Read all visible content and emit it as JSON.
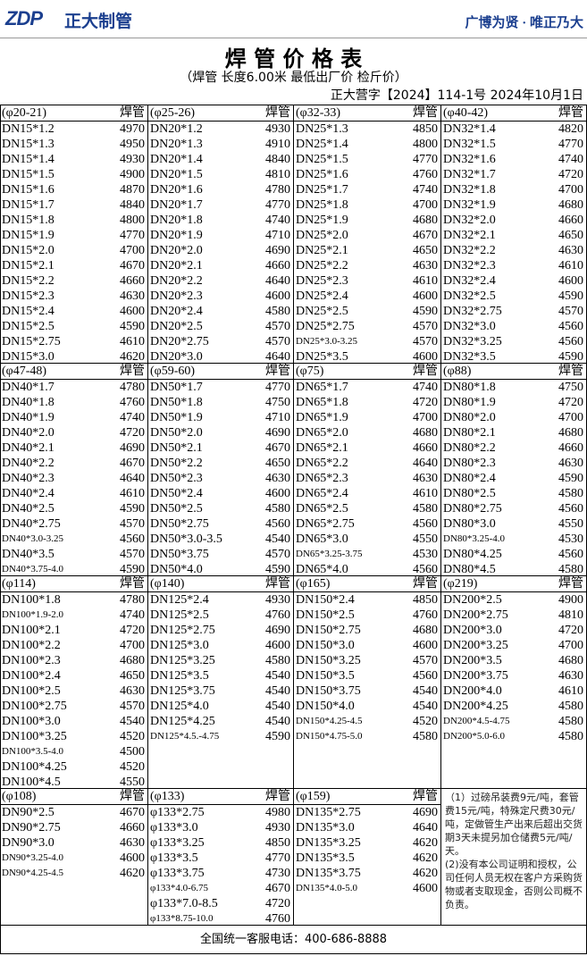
{
  "header": {
    "logo": "ZDP",
    "company": "正大制管",
    "slogan": "广博为贤 · 唯正乃大"
  },
  "title": "焊 管 价 格 表",
  "subtitle": "（焊管  长度6.00米  最低出厂价  检斤价）",
  "doc_number": "正大营字【2024】114-1号    2024年10月1日",
  "sections": [
    {
      "columns": [
        {
          "range": "(φ20-21)",
          "label": "焊管",
          "items": [
            [
              "DN15*1.2",
              4970
            ],
            [
              "DN15*1.3",
              4950
            ],
            [
              "DN15*1.4",
              4930
            ],
            [
              "DN15*1.5",
              4900
            ],
            [
              "DN15*1.6",
              4870
            ],
            [
              "DN15*1.7",
              4840
            ],
            [
              "DN15*1.8",
              4800
            ],
            [
              "DN15*1.9",
              4770
            ],
            [
              "DN15*2.0",
              4700
            ],
            [
              "DN15*2.1",
              4670
            ],
            [
              "DN15*2.2",
              4660
            ],
            [
              "DN15*2.3",
              4630
            ],
            [
              "DN15*2.4",
              4600
            ],
            [
              "DN15*2.5",
              4590
            ],
            [
              "DN15*2.75",
              4610
            ],
            [
              "DN15*3.0",
              4620
            ]
          ]
        },
        {
          "range": "(φ25-26)",
          "label": "焊管",
          "items": [
            [
              "DN20*1.2",
              4930
            ],
            [
              "DN20*1.3",
              4910
            ],
            [
              "DN20*1.4",
              4840
            ],
            [
              "DN20*1.5",
              4810
            ],
            [
              "DN20*1.6",
              4780
            ],
            [
              "DN20*1.7",
              4770
            ],
            [
              "DN20*1.8",
              4740
            ],
            [
              "DN20*1.9",
              4710
            ],
            [
              "DN20*2.0",
              4690
            ],
            [
              "DN20*2.1",
              4660
            ],
            [
              "DN20*2.2",
              4640
            ],
            [
              "DN20*2.3",
              4600
            ],
            [
              "DN20*2.4",
              4580
            ],
            [
              "DN20*2.5",
              4570
            ],
            [
              "DN20*2.75",
              4570
            ],
            [
              "DN20*3.0",
              4640
            ]
          ]
        },
        {
          "range": "(φ32-33)",
          "label": "焊管",
          "items": [
            [
              "DN25*1.3",
              4850
            ],
            [
              "DN25*1.4",
              4800
            ],
            [
              "DN25*1.5",
              4770
            ],
            [
              "DN25*1.6",
              4760
            ],
            [
              "DN25*1.7",
              4740
            ],
            [
              "DN25*1.8",
              4700
            ],
            [
              "DN25*1.9",
              4680
            ],
            [
              "DN25*2.0",
              4670
            ],
            [
              "DN25*2.1",
              4650
            ],
            [
              "DN25*2.2",
              4630
            ],
            [
              "DN25*2.3",
              4610
            ],
            [
              "DN25*2.4",
              4600
            ],
            [
              "DN25*2.5",
              4590
            ],
            [
              "DN25*2.75",
              4570
            ],
            [
              "DN25*3.0-3.25",
              4570
            ],
            [
              "DN25*3.5",
              4600
            ]
          ]
        },
        {
          "range": "(φ40-42)",
          "label": "焊管",
          "items": [
            [
              "DN32*1.4",
              4820
            ],
            [
              "DN32*1.5",
              4770
            ],
            [
              "DN32*1.6",
              4740
            ],
            [
              "DN32*1.7",
              4720
            ],
            [
              "DN32*1.8",
              4700
            ],
            [
              "DN32*1.9",
              4680
            ],
            [
              "DN32*2.0",
              4660
            ],
            [
              "DN32*2.1",
              4650
            ],
            [
              "DN32*2.2",
              4630
            ],
            [
              "DN32*2.3",
              4610
            ],
            [
              "DN32*2.4",
              4600
            ],
            [
              "DN32*2.5",
              4590
            ],
            [
              "DN32*2.75",
              4570
            ],
            [
              "DN32*3.0",
              4560
            ],
            [
              "DN32*3.25",
              4560
            ],
            [
              "DN32*3.5",
              4590
            ]
          ]
        }
      ]
    },
    {
      "columns": [
        {
          "range": "(φ47-48)",
          "label": "焊管",
          "items": [
            [
              "DN40*1.7",
              4780
            ],
            [
              "DN40*1.8",
              4760
            ],
            [
              "DN40*1.9",
              4740
            ],
            [
              "DN40*2.0",
              4720
            ],
            [
              "DN40*2.1",
              4690
            ],
            [
              "DN40*2.2",
              4670
            ],
            [
              "DN40*2.3",
              4640
            ],
            [
              "DN40*2.4",
              4610
            ],
            [
              "DN40*2.5",
              4590
            ],
            [
              "DN40*2.75",
              4570
            ],
            [
              "DN40*3.0-3.25",
              4560
            ],
            [
              "DN40*3.5",
              4570
            ],
            [
              "DN40*3.75-4.0",
              4590
            ]
          ]
        },
        {
          "range": "(φ59-60)",
          "label": "焊管",
          "items": [
            [
              "DN50*1.7",
              4770
            ],
            [
              "DN50*1.8",
              4750
            ],
            [
              "DN50*1.9",
              4710
            ],
            [
              "DN50*2.0",
              4690
            ],
            [
              "DN50*2.1",
              4670
            ],
            [
              "DN50*2.2",
              4650
            ],
            [
              "DN50*2.3",
              4630
            ],
            [
              "DN50*2.4",
              4600
            ],
            [
              "DN50*2.5",
              4580
            ],
            [
              "DN50*2.75",
              4560
            ],
            [
              "DN50*3.0-3.5",
              4540
            ],
            [
              "DN50*3.75",
              4570
            ],
            [
              "DN50*4.0",
              4590
            ]
          ]
        },
        {
          "range": "(φ75)",
          "label": "焊管",
          "items": [
            [
              "DN65*1.7",
              4740
            ],
            [
              "DN65*1.8",
              4720
            ],
            [
              "DN65*1.9",
              4700
            ],
            [
              "DN65*2.0",
              4680
            ],
            [
              "DN65*2.1",
              4660
            ],
            [
              "DN65*2.2",
              4640
            ],
            [
              "DN65*2.3",
              4630
            ],
            [
              "DN65*2.4",
              4610
            ],
            [
              "DN65*2.5",
              4580
            ],
            [
              "DN65*2.75",
              4560
            ],
            [
              "DN65*3.0",
              4550
            ],
            [
              "DN65*3.25-3.75",
              4530
            ],
            [
              "DN65*4.0",
              4560
            ]
          ]
        },
        {
          "range": "(φ88)",
          "label": "焊管",
          "items": [
            [
              "DN80*1.8",
              4750
            ],
            [
              "DN80*1.9",
              4720
            ],
            [
              "DN80*2.0",
              4700
            ],
            [
              "DN80*2.1",
              4680
            ],
            [
              "DN80*2.2",
              4660
            ],
            [
              "DN80*2.3",
              4630
            ],
            [
              "DN80*2.4",
              4590
            ],
            [
              "DN80*2.5",
              4580
            ],
            [
              "DN80*2.75",
              4560
            ],
            [
              "DN80*3.0",
              4550
            ],
            [
              "DN80*3.25-4.0",
              4530
            ],
            [
              "DN80*4.25",
              4560
            ],
            [
              "DN80*4.5",
              4580
            ]
          ]
        }
      ]
    },
    {
      "columns": [
        {
          "range": "(φ114)",
          "label": "焊管",
          "items": [
            [
              "DN100*1.8",
              4780
            ],
            [
              "DN100*1.9-2.0",
              4740
            ],
            [
              "DN100*2.1",
              4720
            ],
            [
              "DN100*2.2",
              4700
            ],
            [
              "DN100*2.3",
              4680
            ],
            [
              "DN100*2.4",
              4650
            ],
            [
              "DN100*2.5",
              4630
            ],
            [
              "DN100*2.75",
              4570
            ],
            [
              "DN100*3.0",
              4540
            ],
            [
              "DN100*3.25",
              4520
            ],
            [
              "DN100*3.5-4.0",
              4500
            ],
            [
              "DN100*4.25",
              4520
            ],
            [
              "DN100*4.5",
              4550
            ]
          ]
        },
        {
          "range": "(φ140)",
          "label": "焊管",
          "items": [
            [
              "DN125*2.4",
              4930
            ],
            [
              "DN125*2.5",
              4760
            ],
            [
              "DN125*2.75",
              4690
            ],
            [
              "DN125*3.0",
              4600
            ],
            [
              "DN125*3.25",
              4580
            ],
            [
              "DN125*3.5",
              4540
            ],
            [
              "DN125*3.75",
              4540
            ],
            [
              "DN125*4.0",
              4540
            ],
            [
              "DN125*4.25",
              4540
            ],
            [
              "DN125*4.5.-4.75",
              4590
            ]
          ]
        },
        {
          "range": "(φ165)",
          "label": "焊管",
          "items": [
            [
              "DN150*2.4",
              4850
            ],
            [
              "DN150*2.5",
              4760
            ],
            [
              "DN150*2.75",
              4680
            ],
            [
              "DN150*3.0",
              4600
            ],
            [
              "DN150*3.25",
              4570
            ],
            [
              "DN150*3.5",
              4560
            ],
            [
              "DN150*3.75",
              4540
            ],
            [
              "DN150*4.0",
              4540
            ],
            [
              "DN150*4.25-4.5",
              4520
            ],
            [
              "DN150*4.75-5.0",
              4580
            ]
          ]
        },
        {
          "range": "(φ219)",
          "label": "焊管",
          "items": [
            [
              "DN200*2.5",
              4900
            ],
            [
              "DN200*2.75",
              4810
            ],
            [
              "DN200*3.0",
              4720
            ],
            [
              "DN200*3.25",
              4700
            ],
            [
              "DN200*3.5",
              4680
            ],
            [
              "DN200*3.75",
              4630
            ],
            [
              "DN200*4.0",
              4610
            ],
            [
              "DN200*4.25",
              4580
            ],
            [
              "DN200*4.5-4.75",
              4580
            ],
            [
              "DN200*5.0-6.0",
              4580
            ]
          ]
        }
      ]
    },
    {
      "columns": [
        {
          "range": "(φ108)",
          "label": "焊管",
          "items": [
            [
              "DN90*2.5",
              4670
            ],
            [
              "DN90*2.75",
              4660
            ],
            [
              "DN90*3.0",
              4630
            ],
            [
              "DN90*3.25-4.0",
              4600
            ],
            [
              "DN90*4.25-4.5",
              4620
            ]
          ]
        },
        {
          "range": "(φ133)",
          "label": "焊管",
          "items": [
            [
              "φ133*2.75",
              4980
            ],
            [
              "φ133*3.0",
              4930
            ],
            [
              "φ133*3.25",
              4850
            ],
            [
              "φ133*3.5",
              4770
            ],
            [
              "φ133*3.75",
              4730
            ],
            [
              "φ133*4.0-6.75",
              4670
            ],
            [
              "φ133*7.0-8.5",
              4720
            ],
            [
              "φ133*8.75-10.0",
              4760
            ]
          ]
        },
        {
          "range": "(φ159)",
          "label": "焊管",
          "items": [
            [
              "DN135*2.75",
              4690
            ],
            [
              "DN135*3.0",
              4640
            ],
            [
              "DN135*3.25",
              4620
            ],
            [
              "DN135*3.5",
              4620
            ],
            [
              "DN135*3.75",
              4620
            ],
            [
              "DN135*4.0-5.0",
              4600
            ]
          ]
        }
      ],
      "notes": [
        "（1）过磅吊装费9元/吨，套管费15元/吨，特殊定尺费30元/吨，定做管生产出来后超出交货期3天未提另加仓储费5元/吨/天。",
        "(2)没有本公司证明和授权，公司任何人员无权在客户方采购货物或者支取现金，否则公司概不负责。"
      ]
    }
  ],
  "footer": "全国统一客服电话：400-686-8888"
}
